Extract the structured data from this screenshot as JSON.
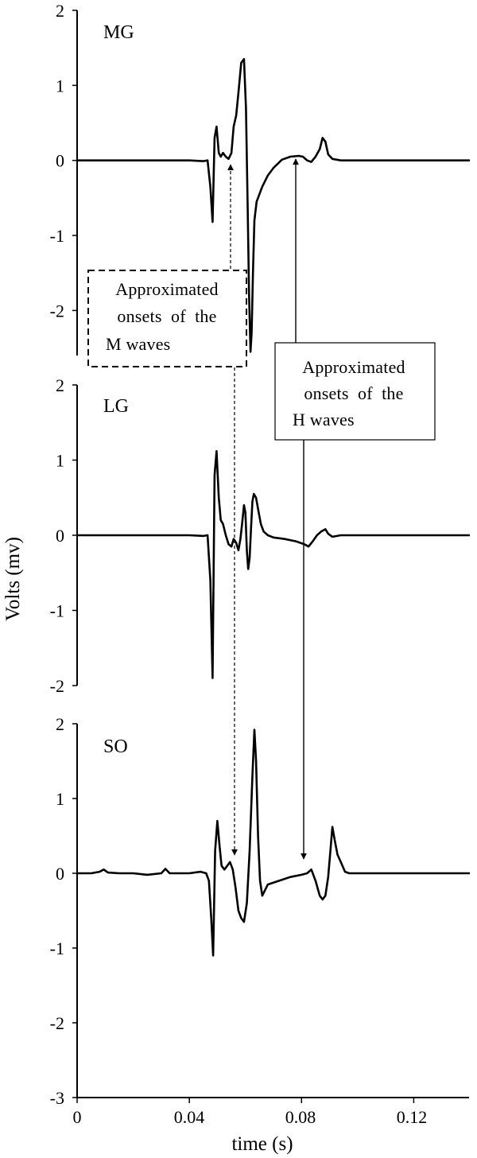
{
  "chart_data": {
    "type": "line",
    "ylabel": "Volts (mv)",
    "xlabel": "time (s)",
    "xlim": [
      0,
      0.14
    ],
    "x_ticks": [
      0,
      0.04,
      0.08,
      0.12
    ],
    "x_tick_labels": [
      "0",
      "0.04",
      "0.08",
      "0.12"
    ],
    "grid": false,
    "legend": "none",
    "panels": [
      {
        "name": "MG",
        "ylim": [
          -2.6,
          2
        ],
        "y_ticks": [
          2,
          1,
          0,
          -1,
          -2
        ],
        "y_tick_labels": [
          "2",
          "1",
          "0",
          "-1",
          "-2"
        ],
        "x": [
          0,
          0.01,
          0.02,
          0.03,
          0.04,
          0.045,
          0.0465,
          0.0475,
          0.0483,
          0.049,
          0.0497,
          0.0505,
          0.0512,
          0.052,
          0.053,
          0.054,
          0.055,
          0.0558,
          0.0567,
          0.0575,
          0.0585,
          0.0595,
          0.0602,
          0.0608,
          0.0613,
          0.0618,
          0.0622,
          0.0627,
          0.0632,
          0.064,
          0.066,
          0.068,
          0.07,
          0.073,
          0.076,
          0.079,
          0.0805,
          0.082,
          0.0835,
          0.085,
          0.0865,
          0.0875,
          0.0885,
          0.0895,
          0.091,
          0.094,
          0.1,
          0.11,
          0.12,
          0.13,
          0.14
        ],
        "y": [
          0,
          0,
          0,
          0,
          0,
          -0.01,
          0,
          -0.35,
          -0.82,
          0.3,
          0.45,
          0.1,
          0.05,
          0.1,
          0.05,
          0.02,
          0.1,
          0.45,
          0.6,
          0.9,
          1.3,
          1.35,
          0.7,
          -0.6,
          -1.8,
          -2.55,
          -2.3,
          -1.5,
          -0.8,
          -0.55,
          -0.35,
          -0.2,
          -0.1,
          0.01,
          0.05,
          0.06,
          0.05,
          0.0,
          -0.02,
          0.05,
          0.15,
          0.3,
          0.25,
          0.08,
          0.02,
          0.0,
          0,
          0,
          0,
          0,
          0
        ]
      },
      {
        "name": "LG",
        "ylim": [
          -2,
          2
        ],
        "y_ticks": [
          2,
          1,
          0,
          -1,
          -2
        ],
        "y_tick_labels": [
          "2",
          "1",
          "0",
          "-1",
          "-2"
        ],
        "x": [
          0,
          0.01,
          0.02,
          0.03,
          0.04,
          0.045,
          0.0465,
          0.0475,
          0.0483,
          0.049,
          0.0497,
          0.0505,
          0.0512,
          0.052,
          0.053,
          0.054,
          0.055,
          0.0558,
          0.0567,
          0.0575,
          0.0582,
          0.0588,
          0.0595,
          0.06,
          0.0605,
          0.061,
          0.0615,
          0.062,
          0.0625,
          0.063,
          0.0638,
          0.0645,
          0.0655,
          0.0665,
          0.068,
          0.07,
          0.074,
          0.078,
          0.081,
          0.0825,
          0.084,
          0.0855,
          0.087,
          0.0885,
          0.0895,
          0.091,
          0.094,
          0.1,
          0.11,
          0.12,
          0.13,
          0.14
        ],
        "y": [
          0,
          0,
          0,
          0,
          0,
          -0.01,
          0,
          -0.6,
          -1.9,
          0.8,
          1.12,
          0.5,
          0.2,
          0.15,
          0.0,
          -0.12,
          -0.15,
          -0.05,
          -0.1,
          -0.2,
          -0.05,
          0.15,
          0.4,
          0.3,
          -0.2,
          -0.45,
          -0.3,
          0.1,
          0.45,
          0.55,
          0.5,
          0.35,
          0.15,
          0.05,
          0.0,
          -0.03,
          -0.05,
          -0.08,
          -0.12,
          -0.15,
          -0.08,
          0.0,
          0.05,
          0.08,
          0.02,
          -0.02,
          0.0,
          0,
          0,
          0,
          0,
          0
        ]
      },
      {
        "name": "SO",
        "ylim": [
          -3,
          2
        ],
        "y_ticks": [
          2,
          1,
          0,
          -1,
          -2,
          -3
        ],
        "y_tick_labels": [
          "2",
          "1",
          "0",
          "-1",
          "-2",
          "-3"
        ],
        "x": [
          0,
          0.005,
          0.008,
          0.0095,
          0.011,
          0.015,
          0.02,
          0.025,
          0.03,
          0.0315,
          0.033,
          0.035,
          0.04,
          0.044,
          0.046,
          0.047,
          0.0478,
          0.0485,
          0.0492,
          0.05,
          0.0508,
          0.0515,
          0.0525,
          0.0535,
          0.0545,
          0.0555,
          0.0565,
          0.0575,
          0.0585,
          0.0595,
          0.0605,
          0.0615,
          0.0625,
          0.0632,
          0.0638,
          0.0645,
          0.0652,
          0.066,
          0.068,
          0.072,
          0.076,
          0.08,
          0.082,
          0.0835,
          0.085,
          0.0865,
          0.0875,
          0.0885,
          0.0895,
          0.0903,
          0.091,
          0.0918,
          0.0928,
          0.094,
          0.0955,
          0.097,
          0.1,
          0.11,
          0.12,
          0.13,
          0.14
        ],
        "y": [
          0,
          0,
          0.02,
          0.05,
          0.01,
          0,
          0,
          -0.02,
          0,
          0.06,
          0.0,
          0,
          0,
          0.02,
          0,
          -0.1,
          -0.6,
          -1.1,
          0.3,
          0.7,
          0.35,
          0.1,
          0.05,
          0.1,
          0.15,
          0.05,
          -0.2,
          -0.5,
          -0.6,
          -0.65,
          -0.4,
          0.3,
          1.3,
          1.92,
          1.5,
          0.5,
          -0.1,
          -0.3,
          -0.15,
          -0.1,
          -0.05,
          -0.02,
          0.0,
          0.05,
          -0.1,
          -0.3,
          -0.35,
          -0.3,
          -0.05,
          0.3,
          0.62,
          0.45,
          0.25,
          0.15,
          0.02,
          0.0,
          0,
          0,
          0,
          0,
          0
        ]
      }
    ],
    "annotations": [
      {
        "id": "m",
        "text": [
          "Approximated",
          "onsets  of  the",
          "M waves"
        ],
        "line_style": "dashed",
        "points_to_x": 0.055
      },
      {
        "id": "h",
        "text": [
          "Approximated",
          "onsets  of  the",
          "H waves"
        ],
        "line_style": "solid",
        "points_to_x": 0.079
      }
    ]
  }
}
